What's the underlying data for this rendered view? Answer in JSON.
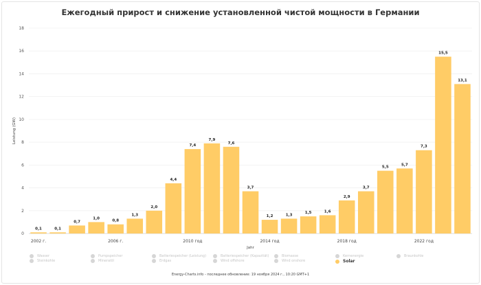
{
  "title": "Ежегодный прирост и снижение установленной чистой мощности в Германии",
  "footer": "Energy-Charts.info - последнее обновление: 19 ноября 2024 г., 10:20 GMT+1",
  "colors": {
    "solar": "#ffcc66",
    "inactive": "#d6d6d6"
  },
  "chart_data": {
    "type": "bar",
    "xlabel": "Jahr",
    "ylabel": "Leistung (GW)",
    "ylim": [
      0,
      18
    ],
    "yticks": [
      0,
      2,
      4,
      6,
      8,
      10,
      12,
      14,
      16,
      18
    ],
    "grid": true,
    "x_tick_labels": [
      "2002 г.",
      "2006 г.",
      "2010 год",
      "2014 год",
      "2018 год",
      "2022 год"
    ],
    "categories": [
      2002,
      2003,
      2004,
      2005,
      2006,
      2007,
      2008,
      2009,
      2010,
      2011,
      2012,
      2013,
      2014,
      2015,
      2016,
      2017,
      2018,
      2019,
      2020,
      2021,
      2022,
      2023,
      2024
    ],
    "series": [
      {
        "name": "Solar",
        "values": [
          0.1,
          0.1,
          0.7,
          1.0,
          0.8,
          1.3,
          2.0,
          4.4,
          7.4,
          7.9,
          7.6,
          3.7,
          1.2,
          1.3,
          1.5,
          1.6,
          2.9,
          3.7,
          5.5,
          5.7,
          7.3,
          15.5,
          13.1
        ],
        "labels": [
          "0,1",
          "0,1",
          "0,7",
          "1,0",
          "0,8",
          "1,3",
          "2,0",
          "4,4",
          "7,4",
          "7,9",
          "7,6",
          "3,7",
          "1,2",
          "1,3",
          "1,5",
          "1,6",
          "2,9",
          "3,7",
          "5,5",
          "5,7",
          "7,3",
          "15,5",
          "13,1"
        ]
      }
    ],
    "legend_position": "bottom"
  },
  "legend": [
    {
      "label": "Wasser",
      "active": false
    },
    {
      "label": "Pumpspeicher",
      "active": false
    },
    {
      "label": "Batteriespeicher (Leistung)",
      "active": false
    },
    {
      "label": "Batteriespeicher (Kapazität)",
      "active": false
    },
    {
      "label": "Biomasse",
      "active": false
    },
    {
      "label": "Kernenergie",
      "active": false
    },
    {
      "label": "Braunkohle",
      "active": false
    },
    {
      "label": "Steinkohle",
      "active": false
    },
    {
      "label": "Mineralöl",
      "active": false
    },
    {
      "label": "Erdgas",
      "active": false
    },
    {
      "label": "Wind offshore",
      "active": false
    },
    {
      "label": "Wind onshore",
      "active": false
    },
    {
      "label": "Solar",
      "active": true
    }
  ]
}
